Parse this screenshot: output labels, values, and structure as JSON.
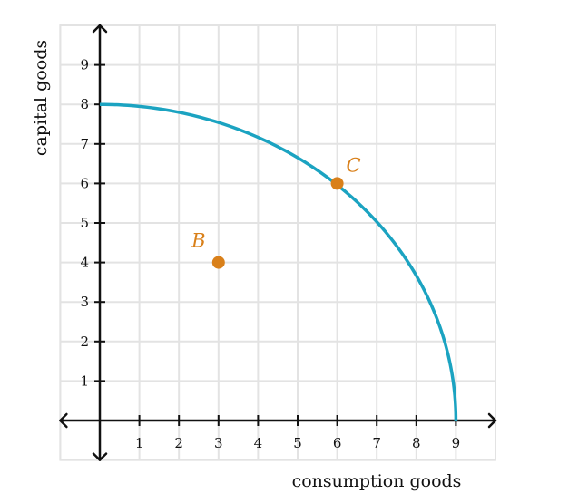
{
  "chart_data": {
    "type": "line",
    "title": "",
    "xlabel": "consumption goods",
    "ylabel": "capital goods",
    "xlim": [
      -1,
      10
    ],
    "ylim": [
      -1,
      10
    ],
    "grid": true,
    "x_ticks": [
      "1",
      "2",
      "3",
      "4",
      "5",
      "6",
      "7",
      "8",
      "9"
    ],
    "y_ticks": [
      "1",
      "2",
      "3",
      "4",
      "5",
      "6",
      "7",
      "8",
      "9"
    ],
    "curve": {
      "shape": "quarter-ellipse",
      "x_intercept": 9,
      "y_intercept": 8,
      "color": "#1ba3c1"
    },
    "points": [
      {
        "label": "B",
        "x": 3,
        "y": 4,
        "color": "#d9801a"
      },
      {
        "label": "C",
        "x": 6,
        "y": 6,
        "color": "#d9801a"
      }
    ]
  }
}
